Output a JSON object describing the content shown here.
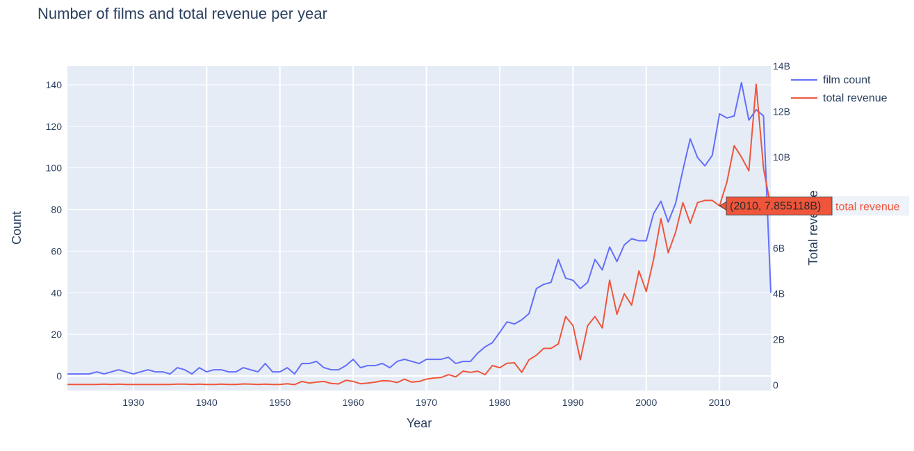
{
  "chart_data": {
    "type": "line",
    "title": "Number of films and total revenue per year",
    "xlabel": "Year",
    "ylabel": "Count",
    "y2label": "Total revenue",
    "xlim": [
      1921,
      2017
    ],
    "ylim": [
      -7,
      149
    ],
    "y2lim": [
      -0.25,
      14.0
    ],
    "x_ticks": [
      1930,
      1940,
      1950,
      1960,
      1970,
      1980,
      1990,
      2000,
      2010
    ],
    "y_ticks": [
      0,
      20,
      40,
      60,
      80,
      100,
      120,
      140
    ],
    "y2_ticks": [
      0,
      2,
      4,
      6,
      8,
      10,
      12,
      14
    ],
    "y2_tick_labels": [
      "0",
      "2B",
      "4B",
      "6B",
      "8B",
      "10B",
      "12B",
      "14B"
    ],
    "x": [
      1921,
      1922,
      1923,
      1924,
      1925,
      1926,
      1927,
      1928,
      1929,
      1930,
      1931,
      1932,
      1933,
      1934,
      1935,
      1936,
      1937,
      1938,
      1939,
      1940,
      1941,
      1942,
      1943,
      1944,
      1945,
      1946,
      1947,
      1948,
      1949,
      1950,
      1951,
      1952,
      1953,
      1954,
      1955,
      1956,
      1957,
      1958,
      1959,
      1960,
      1961,
      1962,
      1963,
      1964,
      1965,
      1966,
      1967,
      1968,
      1969,
      1970,
      1971,
      1972,
      1973,
      1974,
      1975,
      1976,
      1977,
      1978,
      1979,
      1980,
      1981,
      1982,
      1983,
      1984,
      1985,
      1986,
      1987,
      1988,
      1989,
      1990,
      1991,
      1992,
      1993,
      1994,
      1995,
      1996,
      1997,
      1998,
      1999,
      2000,
      2001,
      2002,
      2003,
      2004,
      2005,
      2006,
      2007,
      2008,
      2009,
      2010,
      2011,
      2012,
      2013,
      2014,
      2015,
      2016,
      2017
    ],
    "series": [
      {
        "name": "film count",
        "color": "#636efa",
        "axis": "y",
        "values": [
          1,
          1,
          1,
          1,
          2,
          1,
          2,
          3,
          2,
          1,
          2,
          3,
          2,
          2,
          1,
          4,
          3,
          1,
          4,
          2,
          3,
          3,
          2,
          2,
          4,
          3,
          2,
          6,
          2,
          2,
          4,
          1,
          6,
          6,
          7,
          4,
          3,
          3,
          5,
          8,
          4,
          5,
          5,
          6,
          4,
          7,
          8,
          7,
          6,
          8,
          8,
          8,
          9,
          6,
          7,
          7,
          11,
          14,
          16,
          21,
          26,
          25,
          27,
          30,
          42,
          44,
          45,
          56,
          47,
          46,
          42,
          45,
          56,
          51,
          62,
          55,
          63,
          66,
          65,
          65,
          78,
          84,
          74,
          83,
          99,
          114,
          105,
          101,
          106,
          126,
          124,
          125,
          141,
          123,
          128,
          125,
          40
        ]
      },
      {
        "name": "total revenue",
        "color": "#ef553b",
        "axis": "y2",
        "unit": "billions",
        "values": [
          0.02,
          0.02,
          0.02,
          0.02,
          0.02,
          0.03,
          0.02,
          0.03,
          0.02,
          0.02,
          0.02,
          0.02,
          0.02,
          0.02,
          0.02,
          0.03,
          0.03,
          0.02,
          0.03,
          0.02,
          0.02,
          0.03,
          0.02,
          0.02,
          0.04,
          0.03,
          0.02,
          0.03,
          0.02,
          0.02,
          0.05,
          0.01,
          0.15,
          0.08,
          0.12,
          0.15,
          0.06,
          0.04,
          0.2,
          0.15,
          0.05,
          0.08,
          0.12,
          0.18,
          0.17,
          0.1,
          0.25,
          0.12,
          0.15,
          0.25,
          0.3,
          0.32,
          0.45,
          0.35,
          0.6,
          0.55,
          0.6,
          0.45,
          0.85,
          0.75,
          0.95,
          0.97,
          0.55,
          1.1,
          1.3,
          1.6,
          1.6,
          1.8,
          3.0,
          2.6,
          1.1,
          2.6,
          3.0,
          2.5,
          4.6,
          3.1,
          4.0,
          3.5,
          5.0,
          4.1,
          5.5,
          7.3,
          5.8,
          6.7,
          8.0,
          7.1,
          8.0,
          8.1,
          8.1,
          7.86,
          8.9,
          10.5,
          10.0,
          9.4,
          13.2,
          9.5,
          7.8
        ]
      }
    ],
    "legend": {
      "position": "top-right",
      "entries": [
        "film count",
        "total revenue"
      ]
    },
    "hover": {
      "x": 2010,
      "label": "(2010, 7.855118B)",
      "series": "total revenue",
      "value": 7.855118
    },
    "grid": true
  }
}
